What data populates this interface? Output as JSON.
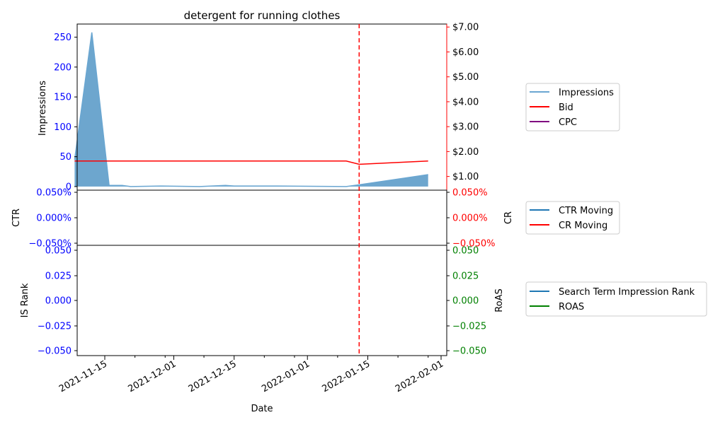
{
  "chart_data": [
    {
      "type": "area",
      "title": "detergent for running clothes",
      "ylabel": "Impressions",
      "y2label": "",
      "ylim": [
        -6,
        272
      ],
      "y2lim": [
        0.45,
        7.12
      ],
      "yticks": [
        0,
        50,
        100,
        150,
        200,
        250
      ],
      "y2ticks": [
        "$1.00",
        "$2.00",
        "$3.00",
        "$4.00",
        "$5.00",
        "$6.00",
        "$7.00"
      ],
      "y2tick_values": [
        1,
        2,
        3,
        4,
        5,
        6,
        7
      ],
      "series": [
        {
          "name": "Impressions",
          "type": "area",
          "color": "#6aa6d1",
          "x": [
            "2021-11-08",
            "2021-11-12",
            "2021-11-16",
            "2021-11-18",
            "2021-11-19",
            "2021-11-21",
            "2021-11-28",
            "2021-12-07",
            "2021-12-13",
            "2021-12-15",
            "2021-12-25",
            "2022-01-10",
            "2022-01-13",
            "2022-01-29"
          ],
          "values": [
            45,
            258,
            2,
            2,
            2,
            0,
            1,
            0,
            2,
            1,
            1,
            0,
            3,
            20
          ]
        },
        {
          "name": "Bid",
          "type": "line",
          "axis": "right",
          "color": "#ff0000",
          "x": [
            "2021-11-08",
            "2022-01-10",
            "2022-01-13",
            "2022-01-29"
          ],
          "values": [
            1.62,
            1.62,
            1.49,
            1.62
          ]
        },
        {
          "name": "CPC",
          "type": "line",
          "axis": "right",
          "color": "#800080",
          "x": [],
          "values": []
        }
      ],
      "vline": {
        "x": "2022-01-13",
        "color": "#ff0000"
      },
      "legend": "right"
    },
    {
      "type": "line",
      "ylabel": "CTR",
      "y2label": "CR",
      "yticks": [
        "−0.050%",
        "0.000%",
        "0.050%"
      ],
      "y2ticks": [
        "−0.050%",
        "0.000%",
        "0.050%"
      ],
      "ylim": [
        -0.05,
        0.05
      ],
      "series": [
        {
          "name": "CTR Moving",
          "color": "#1f77b4",
          "x": [],
          "values": []
        },
        {
          "name": "CR Moving",
          "color": "#ff0000",
          "x": [],
          "values": []
        }
      ],
      "vline": {
        "x": "2022-01-13",
        "color": "#ff0000"
      },
      "legend": "right"
    },
    {
      "type": "line",
      "ylabel": "IS Rank",
      "y2label": "RoAS",
      "xlabel": "Date",
      "yticks": [
        "−0.050",
        "−0.025",
        "0.000",
        "0.025",
        "0.050"
      ],
      "y2ticks": [
        "−0.050",
        "−0.025",
        "0.000",
        "0.025",
        "0.050"
      ],
      "ylim": [
        -0.055,
        0.055
      ],
      "xticks": [
        "2021-11-15",
        "2021-12-01",
        "2021-12-15",
        "2022-01-01",
        "2022-01-15",
        "2022-02-01"
      ],
      "series": [
        {
          "name": "Search Term Impression Rank",
          "color": "#1f77b4",
          "x": [],
          "values": []
        },
        {
          "name": "ROAS",
          "color": "#008000",
          "x": [],
          "values": []
        }
      ],
      "vline": {
        "x": "2022-01-13",
        "color": "#ff0000"
      },
      "legend": "right"
    }
  ]
}
